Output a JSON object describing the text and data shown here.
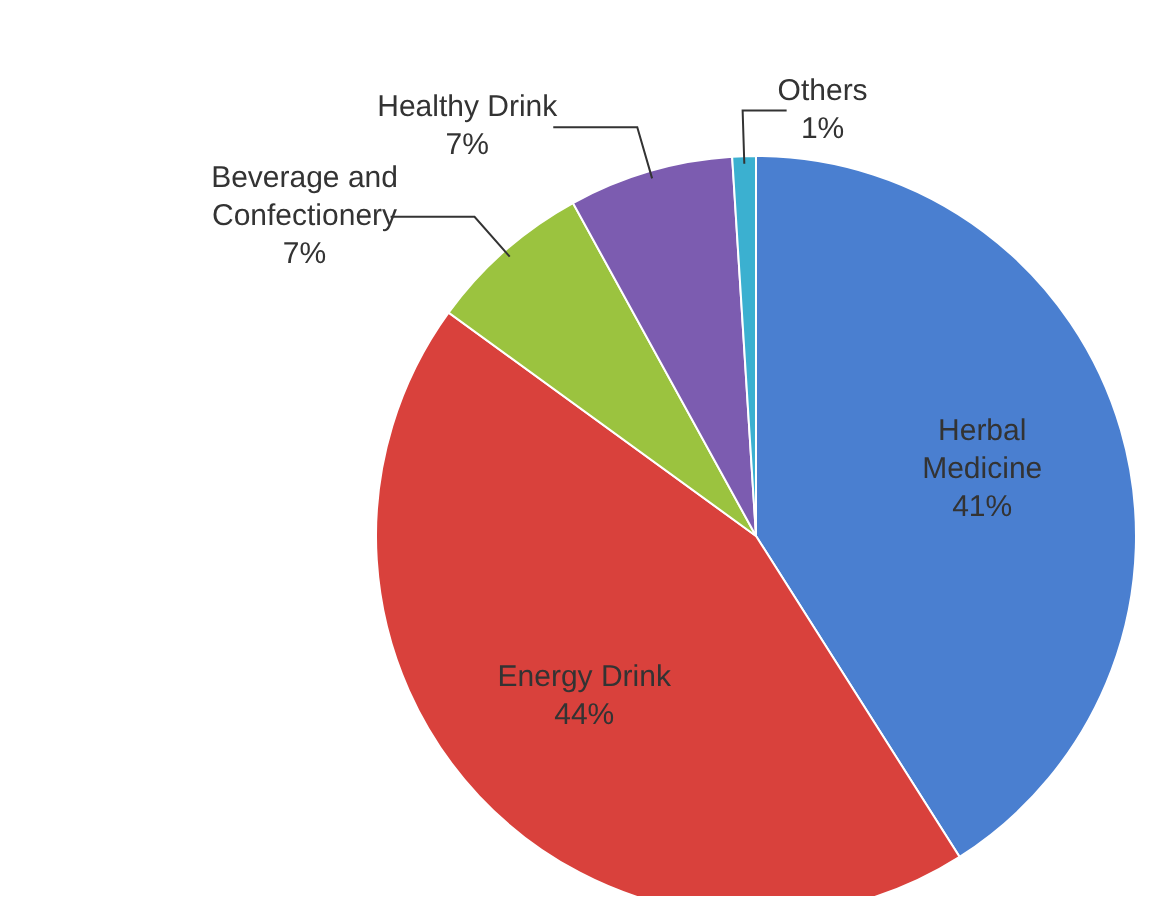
{
  "chart_data": {
    "type": "pie",
    "categories": [
      "Herbal Medicine",
      "Energy Drink",
      "Beverage and Confectionery",
      "Healthy Drink",
      "Others"
    ],
    "values": [
      41,
      44,
      7,
      7,
      1
    ],
    "value_labels": [
      "41%",
      "44%",
      "7%",
      "7%",
      "1%"
    ],
    "colors": [
      "#4a7fd0",
      "#d9413c",
      "#9bc33f",
      "#7c5cb0",
      "#3bb0d0"
    ]
  }
}
